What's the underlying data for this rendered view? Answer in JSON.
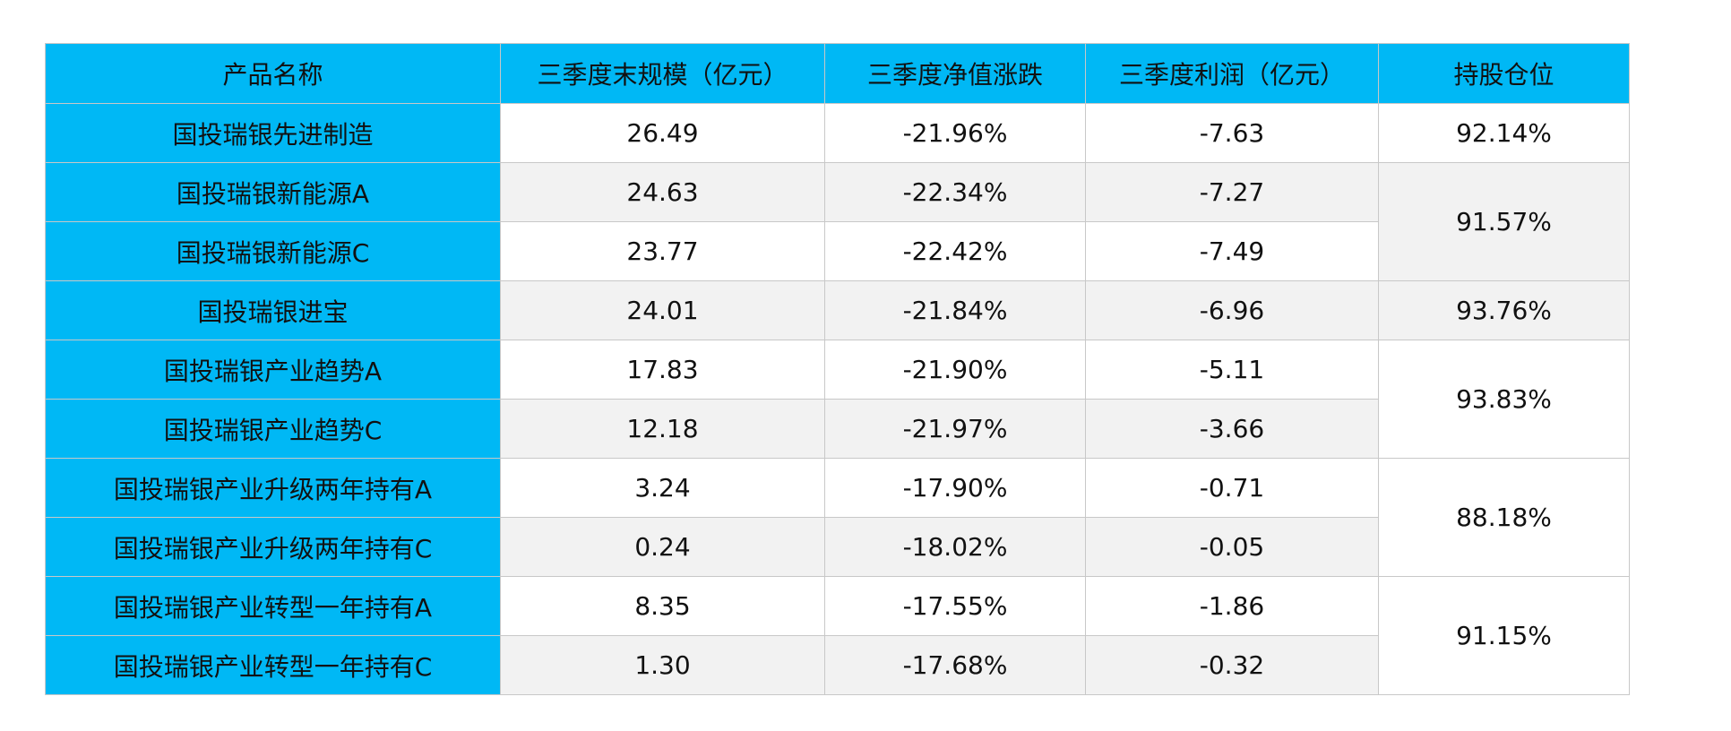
{
  "table": {
    "header": [
      "产品名称",
      "三季度末规模（亿元）",
      "三季度净值涨跌",
      "三季度利润（亿元）",
      "持股仓位"
    ],
    "groups": [
      {
        "position": "92.14%",
        "funds": [
          [
            "国投瑞银先进制造",
            "26.49",
            "-21.96%",
            "-7.63"
          ]
        ]
      },
      {
        "position": "91.57%",
        "funds": [
          [
            "国投瑞银新能源A",
            "24.63",
            "-22.34%",
            "-7.27"
          ],
          [
            "国投瑞银新能源C",
            "23.77",
            "-22.42%",
            "-7.49"
          ]
        ]
      },
      {
        "position": "93.76%",
        "funds": [
          [
            "国投瑞银进宝",
            "24.01",
            "-21.84%",
            "-6.96"
          ]
        ]
      },
      {
        "position": "93.83%",
        "funds": [
          [
            "国投瑞银产业趋势A",
            "17.83",
            "-21.90%",
            "-5.11"
          ],
          [
            "国投瑞银产业趋势C",
            "12.18",
            "-21.97%",
            "-3.66"
          ]
        ]
      },
      {
        "position": "88.18%",
        "funds": [
          [
            "国投瑞银产业升级两年持有A",
            "3.24",
            "-17.90%",
            "-0.71"
          ],
          [
            "国投瑞银产业升级两年持有C",
            "0.24",
            "-18.02%",
            "-0.05"
          ]
        ]
      },
      {
        "position": "91.15%",
        "funds": [
          [
            "国投瑞银产业转型一年持有A",
            "8.35",
            "-17.55%",
            "-1.86"
          ],
          [
            "国投瑞银产业转型一年持有C",
            "1.30",
            "-17.68%",
            "-0.32"
          ]
        ]
      }
    ]
  }
}
